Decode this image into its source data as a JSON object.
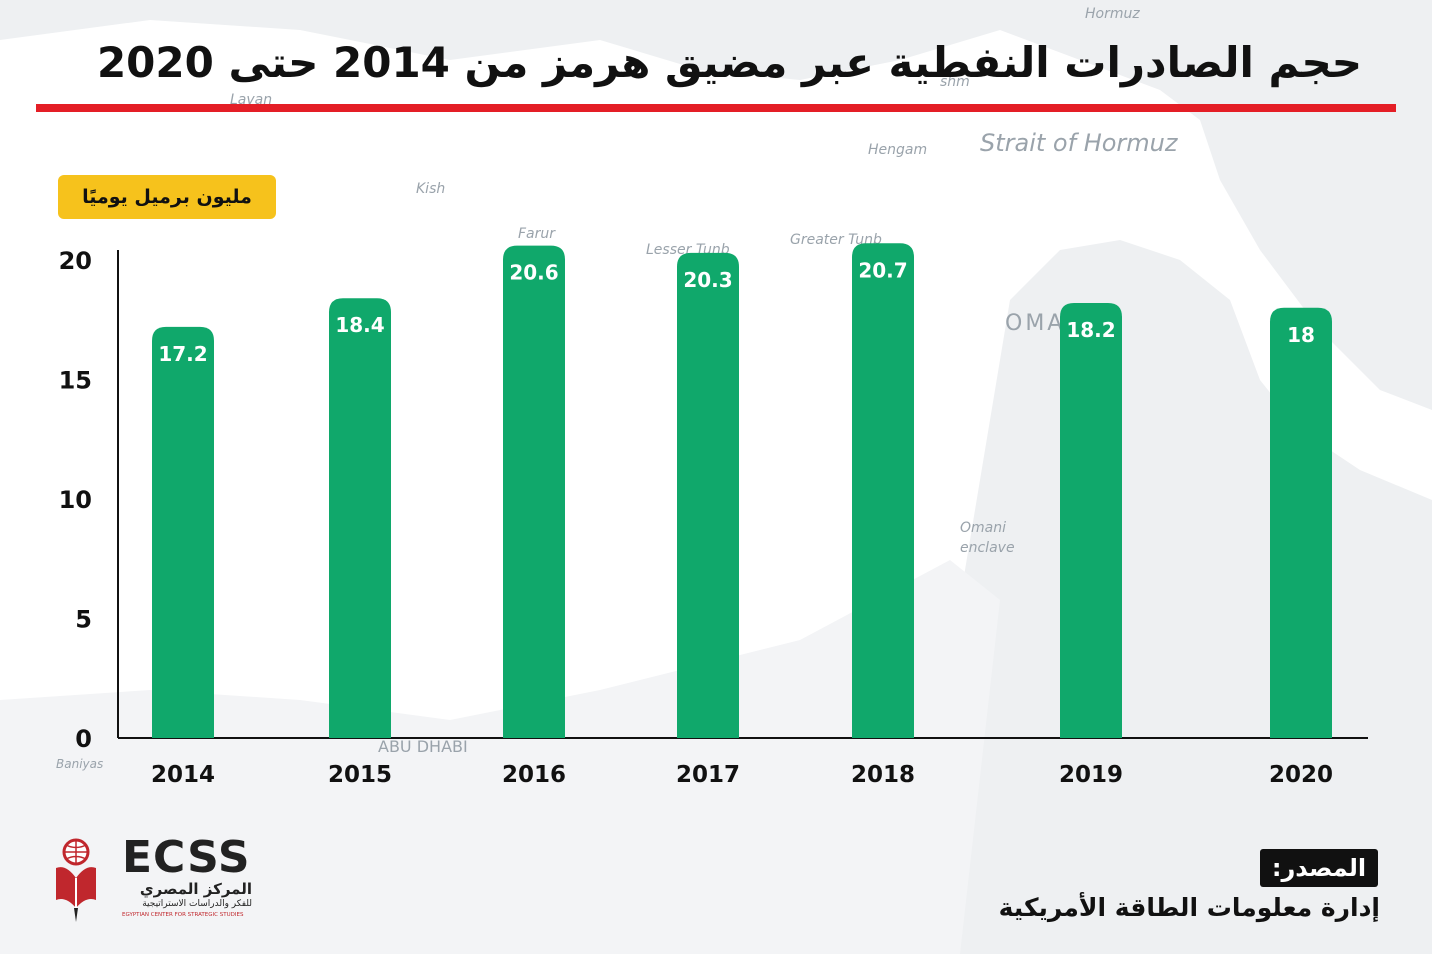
{
  "title": "حجم الصادرات النفطية عبر مضيق هرمز من 2014 حتى 2020",
  "colors": {
    "title_rule": "#e41e26",
    "bar": "#10a86b",
    "unit_badge": "#f6c21c",
    "axis": "#111111"
  },
  "background_map_labels": {
    "hormuz": "Hormuz",
    "lavan": "Lavan",
    "strait": "Strait of Hormuz",
    "hengam": "Hengam",
    "kish": "Kish",
    "farur": "Farur",
    "lesser_tunb": "Lesser Tunb",
    "greater_tunb": "Greater Tunb",
    "oman": "OMA",
    "omani_enclave_1": "Omani",
    "omani_enclave_2": "enclave",
    "abu_dhabi": "ABU DHABI",
    "qeshm": "shm",
    "baniyas": "Baniyas"
  },
  "chart_data": {
    "type": "bar",
    "unit_label": "مليون برميل يوميًا",
    "categories": [
      "2014",
      "2015",
      "2016",
      "2017",
      "2018",
      "2019",
      "2020"
    ],
    "values": [
      17.2,
      18.4,
      20.6,
      20.3,
      20.7,
      18.2,
      18
    ],
    "value_labels": [
      "17.2",
      "18.4",
      "20.6",
      "20.3",
      "20.7",
      "18.2",
      "18"
    ],
    "y_ticks": [
      "0",
      "5",
      "10",
      "15",
      "20"
    ],
    "ylim": [
      0,
      20
    ],
    "grid": false,
    "bar_color": "#10a86b"
  },
  "logo": {
    "name": "ECSS",
    "arabic_name": "المركز المصري",
    "arabic_sub": "للفكر والدراسات الاستراتيجية",
    "english_sub": "EGYPTIAN CENTER FOR STRATEGIC STUDIES",
    "icon": "globe-book-pen-icon"
  },
  "source": {
    "label": "المصدر:",
    "text": "إدارة معلومات الطاقة الأمريكية"
  }
}
